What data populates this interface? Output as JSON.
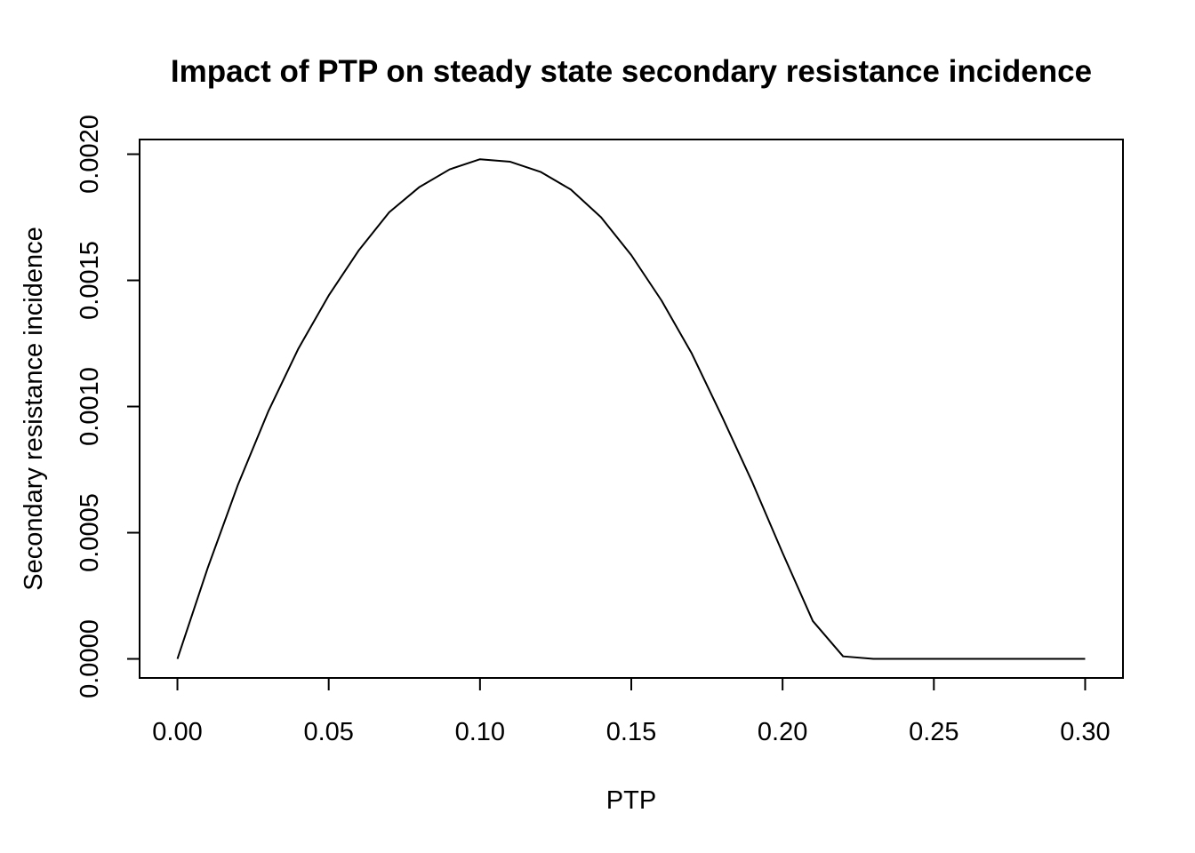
{
  "chart_data": {
    "type": "line",
    "title": "Impact of PTP on steady state secondary resistance incidence",
    "xlabel": "PTP",
    "ylabel": "Secondary resistance incidence",
    "xlim": [
      -0.0125,
      0.3125
    ],
    "ylim": [
      -7.56e-05,
      0.0020582
    ],
    "x_ticks": [
      0.0,
      0.05,
      0.1,
      0.15,
      0.2,
      0.25,
      0.3
    ],
    "x_tick_labels": [
      "0.00",
      "0.05",
      "0.10",
      "0.15",
      "0.20",
      "0.25",
      "0.30"
    ],
    "y_ticks": [
      0.0,
      0.0005,
      0.001,
      0.0015,
      0.002
    ],
    "y_tick_labels": [
      "0.0000",
      "0.0005",
      "0.0010",
      "0.0015",
      "0.0020"
    ],
    "grid": false,
    "legend": "none",
    "series": [
      {
        "x": [
          0.0,
          0.01,
          0.02,
          0.03,
          0.04,
          0.05,
          0.06,
          0.07,
          0.08,
          0.09,
          0.1,
          0.11,
          0.12,
          0.13,
          0.14,
          0.15,
          0.16,
          0.17,
          0.18,
          0.19,
          0.2,
          0.21,
          0.22,
          0.23,
          0.24,
          0.25,
          0.26,
          0.27,
          0.28,
          0.29,
          0.3
        ],
        "y": [
          0.0,
          0.00036,
          0.00069,
          0.00098,
          0.00123,
          0.00144,
          0.00162,
          0.00177,
          0.00187,
          0.00194,
          0.00198,
          0.00197,
          0.00193,
          0.00186,
          0.00175,
          0.0016,
          0.00142,
          0.00121,
          0.00096,
          0.0007,
          0.00042,
          0.00015,
          1e-05,
          0.0,
          0.0,
          0.0,
          0.0,
          0.0,
          0.0,
          0.0,
          0.0
        ]
      }
    ]
  }
}
